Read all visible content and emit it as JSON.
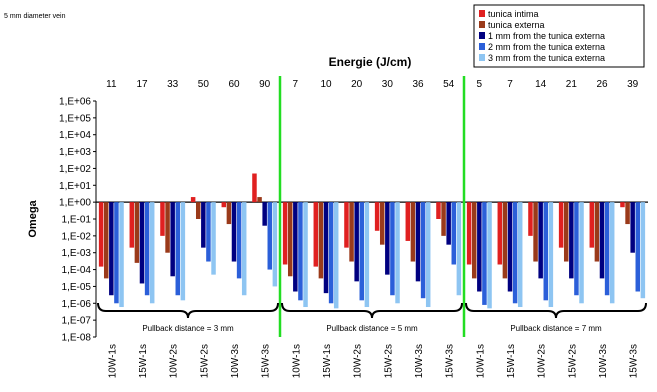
{
  "chart_data": {
    "type": "bar",
    "title": "Energie (J/cm)",
    "subtitle": "5 mm diameter vein",
    "ylabel": "Omega",
    "y_scale": "log",
    "ylim": [
      1e-08,
      1000000.0
    ],
    "baseline": 1,
    "y_ticks": [
      "1,E+06",
      "1,E+05",
      "1,E+04",
      "1,E+03",
      "1,E+02",
      "1,E+01",
      "1,E+00",
      "1,E-01",
      "1,E-02",
      "1,E-03",
      "1,E-04",
      "1,E-05",
      "1,E-06",
      "1,E-07",
      "1,E-08"
    ],
    "energies": [
      "11",
      "17",
      "33",
      "50",
      "60",
      "90",
      "7",
      "10",
      "20",
      "30",
      "36",
      "54",
      "5",
      "7",
      "14",
      "21",
      "26",
      "39"
    ],
    "categories": [
      "10W-1s",
      "15W-1s",
      "10W-2s",
      "15W-2s",
      "10W-3s",
      "15W-3s",
      "10W-1s",
      "15W-1s",
      "10W-2s",
      "15W-2s",
      "10W-3s",
      "15W-3s",
      "10W-1s",
      "15W-1s",
      "10W-2s",
      "15W-2s",
      "10W-3s",
      "15W-3s"
    ],
    "groups": [
      {
        "label": "Pullback distance = 3 mm",
        "start": 0,
        "end": 5
      },
      {
        "label": "Pullback distance = 5 mm",
        "start": 6,
        "end": 11
      },
      {
        "label": "Pullback distance = 7 mm",
        "start": 12,
        "end": 17
      }
    ],
    "legend_position": "top-right",
    "series": [
      {
        "name": "tunica intima",
        "color": "#e02020",
        "values": [
          0.00015,
          0.002,
          0.01,
          2,
          0.5,
          50,
          0.0002,
          0.00015,
          0.002,
          0.02,
          0.005,
          0.1,
          0.0002,
          0.0002,
          0.01,
          0.002,
          0.002,
          0.5
        ]
      },
      {
        "name": "tunica externa",
        "color": "#9a3a1a",
        "values": [
          3e-05,
          0.00025,
          0.001,
          0.1,
          0.05,
          2,
          4e-05,
          3e-05,
          0.0003,
          0.003,
          0.0003,
          0.01,
          3e-05,
          3e-05,
          0.0003,
          0.0003,
          0.0003,
          0.05
        ]
      },
      {
        "name": "1 mm from the tunica externa",
        "color": "#000080",
        "values": [
          3e-06,
          1.5e-05,
          4e-05,
          0.002,
          0.0003,
          0.04,
          5e-06,
          4e-06,
          2e-05,
          5e-05,
          2e-05,
          0.003,
          5e-06,
          5e-06,
          3e-05,
          3e-05,
          3e-05,
          0.001
        ]
      },
      {
        "name": "2 mm from the tunica externa",
        "color": "#2b5fd9",
        "values": [
          1e-06,
          3e-06,
          3e-06,
          0.0003,
          3e-05,
          0.0001,
          1.5e-06,
          1e-06,
          1.5e-06,
          3e-06,
          2e-06,
          0.0002,
          8e-07,
          1e-06,
          1.5e-06,
          3e-06,
          3e-06,
          5e-06
        ]
      },
      {
        "name": "3 mm from the tunica externa",
        "color": "#8ec5f2",
        "values": [
          6e-07,
          1e-06,
          1.5e-06,
          5e-05,
          3e-06,
          1e-05,
          6e-07,
          5e-07,
          6e-07,
          1e-06,
          6e-07,
          3e-06,
          5e-07,
          6e-07,
          6e-07,
          1e-06,
          1e-06,
          2e-06
        ]
      }
    ]
  }
}
